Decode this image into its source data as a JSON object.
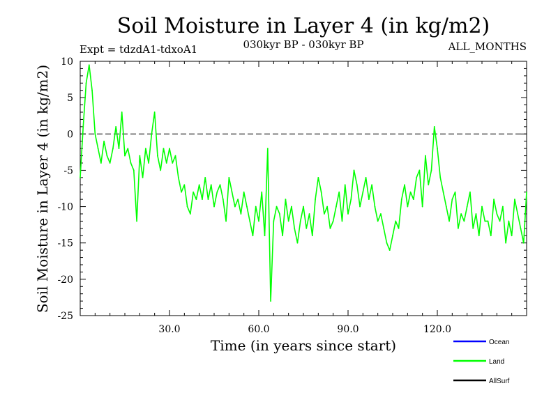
{
  "chart_data": {
    "type": "line",
    "title": "Soil Moisture in Layer 4 (in kg/m2)",
    "subtitle_left": "Expt = tdzdA1-tdxoA1",
    "subtitle_center": "030kyr BP - 030kyr BP",
    "subtitle_right": "ALL_MONTHS",
    "xlabel": "Time (in years since start)",
    "ylabel": "Soil Moisture in Layer 4 (in kg/m2)",
    "xlim": [
      0,
      150
    ],
    "ylim": [
      -25,
      10
    ],
    "xticks": [
      30,
      60,
      90,
      120
    ],
    "xtick_labels": [
      "30.0",
      "60.0",
      "90.0",
      "120.0"
    ],
    "yticks": [
      10,
      5,
      0,
      -5,
      -10,
      -15,
      -20,
      -25
    ],
    "ytick_labels": [
      "10",
      "5",
      "0",
      "-5",
      "-10",
      "-15",
      "-20",
      "-25"
    ],
    "reference_line": {
      "y": 0,
      "style": "dashed"
    },
    "legend": {
      "position": "bottom-right",
      "entries": [
        {
          "name": "Ocean",
          "color": "#0000ff"
        },
        {
          "name": "Land",
          "color": "#00ff00"
        },
        {
          "name": "AllSurf",
          "color": "#000000"
        }
      ]
    },
    "series": [
      {
        "name": "Land",
        "color": "#00ff00",
        "x": [
          0,
          1,
          2,
          3,
          4,
          5,
          6,
          7,
          8,
          9,
          10,
          11,
          12,
          13,
          14,
          15,
          16,
          17,
          18,
          19,
          20,
          21,
          22,
          23,
          24,
          25,
          26,
          27,
          28,
          29,
          30,
          31,
          32,
          33,
          34,
          35,
          36,
          37,
          38,
          39,
          40,
          41,
          42,
          43,
          44,
          45,
          46,
          47,
          48,
          49,
          50,
          51,
          52,
          53,
          54,
          55,
          56,
          57,
          58,
          59,
          60,
          61,
          62,
          63,
          64,
          65,
          66,
          67,
          68,
          69,
          70,
          71,
          72,
          73,
          74,
          75,
          76,
          77,
          78,
          79,
          80,
          81,
          82,
          83,
          84,
          85,
          86,
          87,
          88,
          89,
          90,
          91,
          92,
          93,
          94,
          95,
          96,
          97,
          98,
          99,
          100,
          101,
          102,
          103,
          104,
          105,
          106,
          107,
          108,
          109,
          110,
          111,
          112,
          113,
          114,
          115,
          116,
          117,
          118,
          119,
          120,
          121,
          122,
          123,
          124,
          125,
          126,
          127,
          128,
          129,
          130,
          131,
          132,
          133,
          134,
          135,
          136,
          137,
          138,
          139,
          140,
          141,
          142,
          143,
          144,
          145,
          146,
          147,
          148,
          149,
          150
        ],
        "values": [
          -6,
          1,
          7,
          9.5,
          6,
          0,
          -2,
          -4,
          -1,
          -3,
          -4,
          -2,
          1,
          -2,
          3,
          -3,
          -2,
          -4,
          -5,
          -12,
          -3,
          -6,
          -2,
          -4,
          0,
          3,
          -3,
          -5,
          -2,
          -4,
          -2,
          -4,
          -3,
          -6,
          -8,
          -7,
          -10,
          -11,
          -8,
          -9,
          -7,
          -9,
          -6,
          -9,
          -7,
          -10,
          -8,
          -7,
          -9,
          -12,
          -6,
          -8,
          -10,
          -9,
          -11,
          -8,
          -10,
          -12,
          -14,
          -10,
          -12,
          -8,
          -14,
          -2,
          -23,
          -12,
          -10,
          -11,
          -14,
          -9,
          -12,
          -10,
          -13,
          -15,
          -12,
          -10,
          -13,
          -11,
          -14,
          -9,
          -6,
          -8,
          -11,
          -10,
          -13,
          -12,
          -10,
          -8,
          -12,
          -7,
          -11,
          -9,
          -5,
          -7,
          -10,
          -8,
          -6,
          -9,
          -7,
          -10,
          -12,
          -11,
          -13,
          -15,
          -16,
          -14,
          -12,
          -13,
          -9,
          -7,
          -10,
          -8,
          -9,
          -6,
          -5,
          -10,
          -3,
          -7,
          -5,
          1,
          -2,
          -6,
          -8,
          -10,
          -12,
          -9,
          -8,
          -13,
          -11,
          -12,
          -10,
          -8,
          -13,
          -11,
          -14,
          -10,
          -12,
          -12,
          -14,
          -9,
          -11,
          -12,
          -10,
          -15,
          -12,
          -14,
          -9,
          -11,
          -13,
          -15,
          -8
        ]
      }
    ]
  }
}
